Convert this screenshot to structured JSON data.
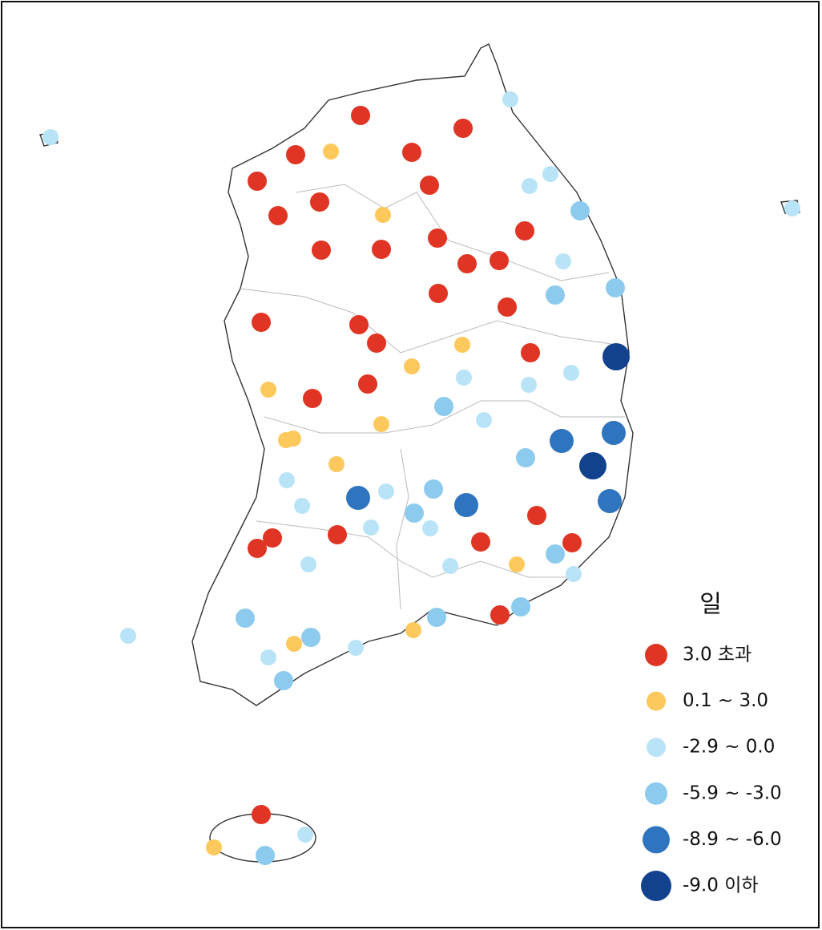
{
  "legend": {
    "title": "일",
    "items": [
      {
        "label": "3.0 초과",
        "color": "#e03424"
      },
      {
        "label": "0.1 ~ 3.0",
        "color": "#fdc95c"
      },
      {
        "label": "-2.9 ~ 0.0",
        "color": "#b9e4f7"
      },
      {
        "label": "-5.9 ~ -3.0",
        "color": "#8ccbee"
      },
      {
        "label": "-8.9 ~ -6.0",
        "color": "#2f74bf"
      },
      {
        "label": "-9.0 이하",
        "color": "#12418e"
      }
    ]
  }
}
